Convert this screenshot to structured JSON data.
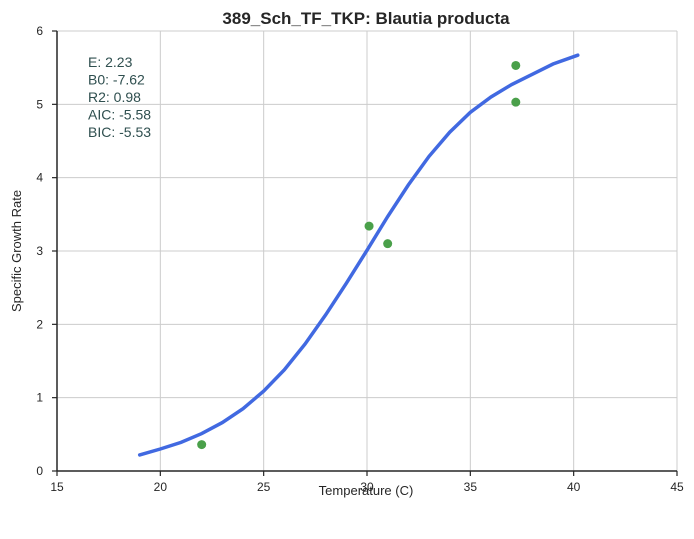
{
  "chart_data": {
    "type": "scatter",
    "title": "389_Sch_TF_TKP: Blautia producta",
    "xlabel": "Temperature (C)",
    "ylabel": "Specific Growth Rate",
    "xlim": [
      15,
      45
    ],
    "ylim": [
      0,
      6
    ],
    "xticks": [
      "15",
      "20",
      "25",
      "30",
      "35",
      "40",
      "45"
    ],
    "yticks": [
      "0",
      "1",
      "2",
      "3",
      "4",
      "5",
      "6"
    ],
    "grid": true,
    "colors": {
      "points": "#4aa04a",
      "fit": "#4169e1",
      "stats": "#2f4f4f",
      "grid": "#cccccc",
      "axis": "#262626"
    },
    "points": [
      {
        "x": 22.0,
        "y": 0.36
      },
      {
        "x": 30.1,
        "y": 3.34
      },
      {
        "x": 31.0,
        "y": 3.1
      },
      {
        "x": 37.2,
        "y": 5.53
      },
      {
        "x": 37.2,
        "y": 5.03
      }
    ],
    "fit_curve": [
      {
        "x": 19.0,
        "y": 0.22
      },
      {
        "x": 20.0,
        "y": 0.3
      },
      {
        "x": 21.0,
        "y": 0.39
      },
      {
        "x": 22.0,
        "y": 0.51
      },
      {
        "x": 23.0,
        "y": 0.66
      },
      {
        "x": 24.0,
        "y": 0.85
      },
      {
        "x": 25.0,
        "y": 1.09
      },
      {
        "x": 26.0,
        "y": 1.38
      },
      {
        "x": 27.0,
        "y": 1.73
      },
      {
        "x": 28.0,
        "y": 2.13
      },
      {
        "x": 29.0,
        "y": 2.56
      },
      {
        "x": 30.0,
        "y": 3.01
      },
      {
        "x": 31.0,
        "y": 3.47
      },
      {
        "x": 32.0,
        "y": 3.9
      },
      {
        "x": 33.0,
        "y": 4.29
      },
      {
        "x": 34.0,
        "y": 4.62
      },
      {
        "x": 35.0,
        "y": 4.89
      },
      {
        "x": 36.0,
        "y": 5.1
      },
      {
        "x": 37.0,
        "y": 5.27
      },
      {
        "x": 38.0,
        "y": 5.41
      },
      {
        "x": 39.0,
        "y": 5.55
      },
      {
        "x": 40.2,
        "y": 5.67
      }
    ],
    "annotation_lines": [
      "E:  2.23",
      "B0:  -7.62",
      "R2:  0.98",
      "AIC: -5.58",
      "BIC: -5.53"
    ]
  }
}
